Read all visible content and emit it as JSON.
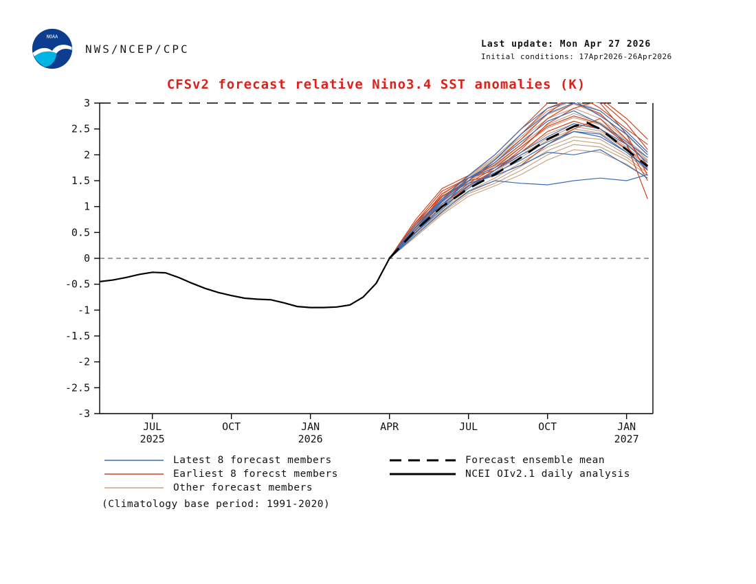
{
  "header": {
    "org": "NWS/NCEP/CPC",
    "last_update": "Last update: Mon Apr 27 2026",
    "initial_conditions": "Initial conditions: 17Apr2026-26Apr2026",
    "logo_text": "NOAA"
  },
  "title_color": "#dc201a",
  "footnote": "(Climatology base period: 1991-2020)",
  "chart_data": {
    "type": "line",
    "title": "CFSv2 forecast relative Nino3.4 SST anomalies (K)",
    "xlabel": "",
    "ylabel": "",
    "ylim": [
      -3,
      3
    ],
    "x_range": [
      0,
      21
    ],
    "grid": false,
    "legend_position": "bottom",
    "zero_line": true,
    "y_tick_labels": [
      "3",
      "2.5",
      "2",
      "1.5",
      "1",
      "0.5",
      "0",
      "-0.5",
      "-1",
      "-1.5",
      "-2",
      "-2.5",
      "-3"
    ],
    "x_ticks": [
      {
        "t": 2,
        "label": "JUL",
        "year": "2025"
      },
      {
        "t": 5,
        "label": "OCT",
        "year": ""
      },
      {
        "t": 8,
        "label": "JAN",
        "year": "2026"
      },
      {
        "t": 11,
        "label": "APR",
        "year": ""
      },
      {
        "t": 14,
        "label": "JUL",
        "year": ""
      },
      {
        "t": 17,
        "label": "OCT",
        "year": ""
      },
      {
        "t": 20,
        "label": "JAN",
        "year": "2027"
      }
    ],
    "observation": {
      "name": "NCEI OIv2.1 daily analysis",
      "color": "#000000",
      "t": [
        0,
        0.5,
        1,
        1.5,
        2,
        2.5,
        3,
        3.5,
        4,
        4.5,
        5,
        5.5,
        6,
        6.5,
        7,
        7.5,
        8,
        8.5,
        9,
        9.5,
        10,
        10.5,
        11
      ],
      "v": [
        -0.45,
        -0.42,
        -0.37,
        -0.31,
        -0.27,
        -0.28,
        -0.37,
        -0.48,
        -0.58,
        -0.66,
        -0.72,
        -0.77,
        -0.79,
        -0.8,
        -0.86,
        -0.93,
        -0.95,
        -0.95,
        -0.94,
        -0.9,
        -0.75,
        -0.48,
        0.0
      ]
    },
    "ensemble_mean": {
      "name": "Forecast ensemble mean",
      "color": "#000000",
      "t": [
        11,
        12,
        13,
        14,
        15,
        16,
        17,
        18,
        18.5,
        19,
        20,
        20.8
      ],
      "v": [
        0,
        0.55,
        1.0,
        1.35,
        1.62,
        1.95,
        2.3,
        2.55,
        2.62,
        2.5,
        2.1,
        1.78
      ]
    },
    "forecast_t": [
      11,
      12,
      13,
      14,
      15,
      16,
      17,
      18,
      19,
      20,
      20.8
    ],
    "groups": [
      {
        "name": "Latest 8 forecast members",
        "color": "#3b6db4",
        "members": [
          [
            0,
            0.5,
            0.95,
            1.4,
            1.65,
            1.9,
            2.2,
            2.45,
            2.4,
            2.05,
            1.75
          ],
          [
            0,
            0.6,
            1.05,
            1.45,
            1.6,
            1.8,
            2.05,
            2.0,
            2.1,
            1.8,
            1.55
          ],
          [
            0,
            0.45,
            0.9,
            1.3,
            1.5,
            1.45,
            1.42,
            1.5,
            1.55,
            1.5,
            1.62
          ],
          [
            0,
            0.55,
            1.1,
            1.5,
            1.9,
            2.4,
            2.8,
            3.0,
            2.85,
            2.45,
            2.05
          ],
          [
            0,
            0.5,
            1.0,
            1.55,
            1.75,
            2.05,
            2.35,
            2.6,
            2.5,
            2.2,
            1.85
          ],
          [
            0,
            0.65,
            1.15,
            1.6,
            2.0,
            2.5,
            2.9,
            3.05,
            2.75,
            2.4,
            2.0
          ],
          [
            0,
            0.5,
            1.0,
            1.35,
            1.7,
            2.0,
            2.25,
            2.45,
            2.35,
            2.05,
            1.72
          ],
          [
            0,
            0.6,
            1.12,
            1.55,
            1.85,
            2.25,
            2.65,
            2.85,
            2.6,
            2.25,
            1.95
          ]
        ]
      },
      {
        "name": "Earliest 8 forecst members",
        "color": "#cf451f",
        "members": [
          [
            0,
            0.7,
            1.3,
            1.55,
            1.7,
            2.1,
            2.6,
            2.9,
            3.05,
            2.6,
            2.1
          ],
          [
            0,
            0.6,
            1.2,
            1.5,
            1.9,
            2.4,
            2.9,
            3.1,
            3.0,
            2.4,
            1.6
          ],
          [
            0,
            0.55,
            1.1,
            1.5,
            1.6,
            1.8,
            2.2,
            2.5,
            2.7,
            2.2,
            1.15
          ],
          [
            0,
            0.75,
            1.35,
            1.6,
            2.0,
            2.5,
            3.0,
            3.2,
            2.9,
            2.5,
            2.2
          ],
          [
            0,
            0.65,
            1.25,
            1.55,
            1.8,
            2.2,
            2.7,
            3.0,
            2.8,
            2.3,
            1.8
          ],
          [
            0,
            0.7,
            1.2,
            1.45,
            1.75,
            2.15,
            2.55,
            2.75,
            2.6,
            2.2,
            1.5
          ],
          [
            0,
            0.6,
            1.15,
            1.5,
            1.85,
            2.3,
            2.8,
            3.15,
            3.1,
            2.7,
            2.3
          ],
          [
            0,
            0.55,
            1.05,
            1.4,
            1.7,
            2.05,
            2.45,
            2.65,
            2.5,
            2.1,
            1.7
          ]
        ]
      },
      {
        "name": "Other forecast members",
        "color": "#c9a183",
        "members": [
          [
            0,
            0.5,
            0.95,
            1.3,
            1.55,
            1.85,
            2.15,
            2.35,
            2.3,
            2.0,
            1.7
          ],
          [
            0,
            0.58,
            1.05,
            1.42,
            1.7,
            2.05,
            2.4,
            2.6,
            2.5,
            2.15,
            1.8
          ],
          [
            0,
            0.45,
            0.88,
            1.25,
            1.45,
            1.7,
            2.0,
            2.2,
            2.15,
            1.9,
            1.6
          ],
          [
            0,
            0.62,
            1.15,
            1.55,
            1.9,
            2.3,
            2.7,
            2.9,
            2.7,
            2.3,
            1.95
          ],
          [
            0,
            0.52,
            1.0,
            1.38,
            1.62,
            1.95,
            2.28,
            2.5,
            2.42,
            2.1,
            1.78
          ],
          [
            0,
            0.68,
            1.22,
            1.6,
            1.95,
            2.4,
            2.85,
            3.05,
            2.85,
            2.45,
            2.05
          ],
          [
            0,
            0.48,
            0.92,
            1.28,
            1.5,
            1.78,
            2.08,
            2.28,
            2.22,
            1.95,
            1.65
          ],
          [
            0,
            0.56,
            1.08,
            1.48,
            1.78,
            2.15,
            2.52,
            2.72,
            2.58,
            2.22,
            1.88
          ],
          [
            0,
            0.42,
            0.85,
            1.2,
            1.4,
            1.62,
            1.9,
            2.1,
            2.05,
            1.82,
            1.55
          ],
          [
            0,
            0.64,
            1.18,
            1.58,
            1.92,
            2.35,
            2.78,
            2.98,
            2.78,
            2.38,
            2.0
          ],
          [
            0,
            0.54,
            1.02,
            1.4,
            1.66,
            2.0,
            2.32,
            2.55,
            2.46,
            2.12,
            1.8
          ],
          [
            0,
            0.6,
            1.1,
            1.5,
            1.82,
            2.2,
            2.58,
            2.8,
            2.62,
            2.28,
            1.9
          ]
        ]
      }
    ]
  }
}
